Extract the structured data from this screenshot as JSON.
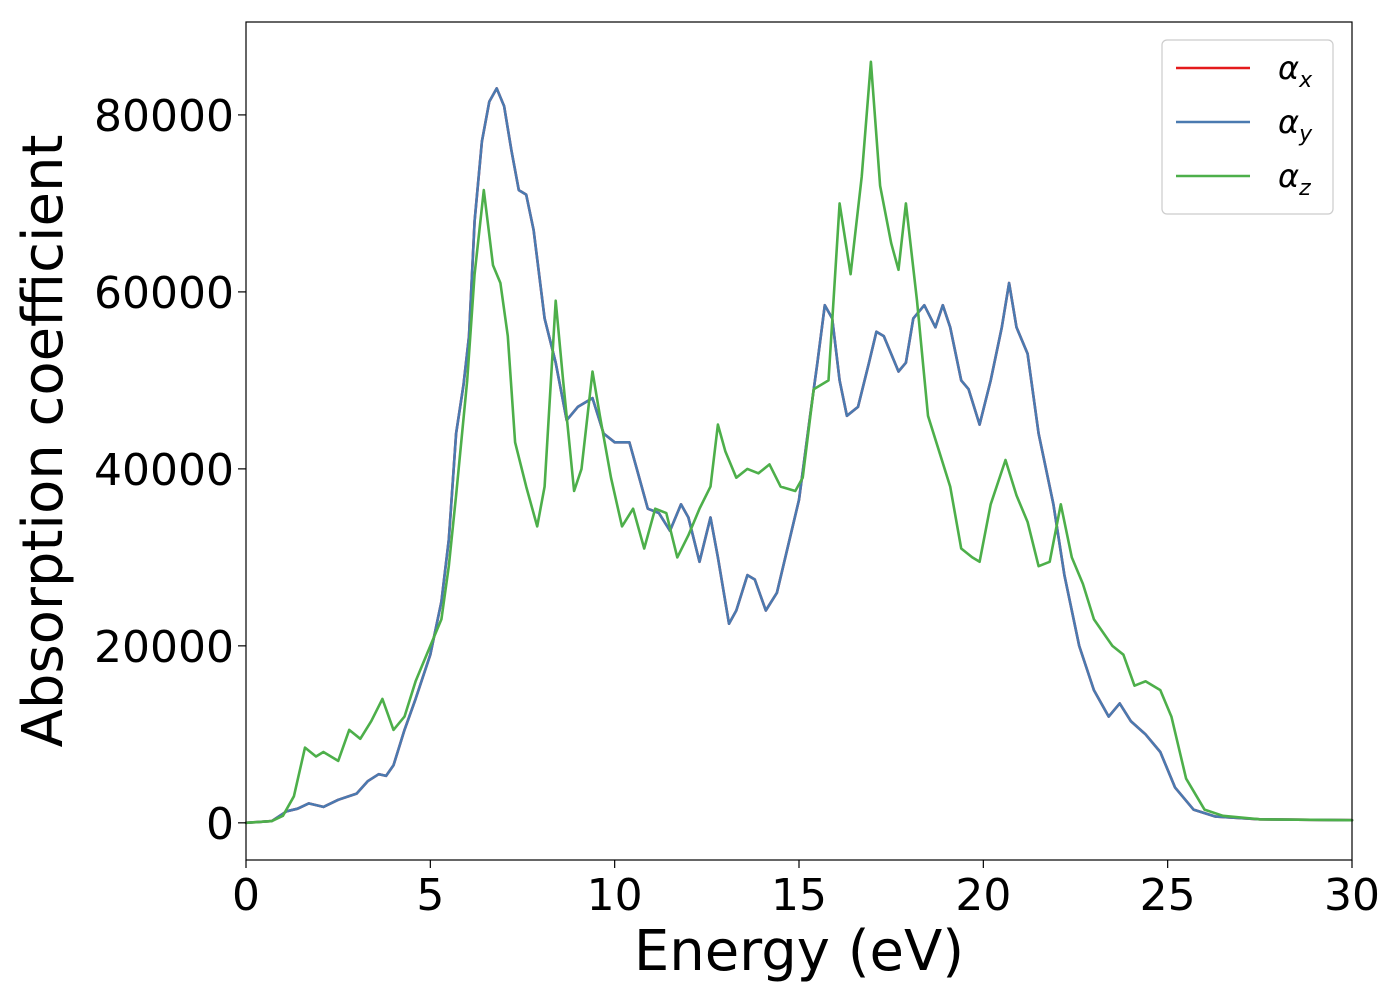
{
  "chart_data": {
    "type": "line",
    "xlabel": "Energy (eV)",
    "ylabel": "Absorption coefficient",
    "xlim": [
      0,
      30
    ],
    "ylim": [
      -4200,
      90500
    ],
    "xticks": [
      "0",
      "5",
      "10",
      "15",
      "20",
      "25",
      "30"
    ],
    "yticks": [
      "0",
      "20000",
      "40000",
      "60000",
      "80000"
    ],
    "grid": false,
    "legend_position": "top-right",
    "series": [
      {
        "name": "α",
        "name_subscript": "x",
        "color": "#e41a1c",
        "points": [
          [
            0,
            0
          ],
          [
            0.7,
            200
          ],
          [
            1.1,
            1300
          ],
          [
            1.4,
            1600
          ],
          [
            1.7,
            2200
          ],
          [
            2.1,
            1800
          ],
          [
            2.5,
            2600
          ],
          [
            3.0,
            3300
          ],
          [
            3.3,
            4700
          ],
          [
            3.6,
            5500
          ],
          [
            3.8,
            5300
          ],
          [
            4.0,
            6500
          ],
          [
            4.3,
            10500
          ],
          [
            4.6,
            14000
          ],
          [
            5.0,
            19000
          ],
          [
            5.3,
            25000
          ],
          [
            5.5,
            32000
          ],
          [
            5.7,
            44000
          ],
          [
            5.9,
            49500
          ],
          [
            6.05,
            55000
          ],
          [
            6.2,
            68000
          ],
          [
            6.4,
            77000
          ],
          [
            6.6,
            81500
          ],
          [
            6.8,
            83000
          ],
          [
            7.0,
            81000
          ],
          [
            7.2,
            76000
          ],
          [
            7.4,
            71500
          ],
          [
            7.6,
            71000
          ],
          [
            7.8,
            67000
          ],
          [
            8.1,
            57000
          ],
          [
            8.4,
            52000
          ],
          [
            8.7,
            45500
          ],
          [
            9.0,
            47000
          ],
          [
            9.4,
            48000
          ],
          [
            9.7,
            44000
          ],
          [
            10.0,
            43000
          ],
          [
            10.4,
            43000
          ],
          [
            10.6,
            40000
          ],
          [
            10.9,
            35500
          ],
          [
            11.2,
            35000
          ],
          [
            11.5,
            33000
          ],
          [
            11.8,
            36000
          ],
          [
            12.0,
            34500
          ],
          [
            12.3,
            29500
          ],
          [
            12.6,
            34500
          ],
          [
            12.8,
            30000
          ],
          [
            13.1,
            22500
          ],
          [
            13.3,
            24000
          ],
          [
            13.6,
            28000
          ],
          [
            13.8,
            27500
          ],
          [
            14.1,
            24000
          ],
          [
            14.4,
            26000
          ],
          [
            15.0,
            36500
          ],
          [
            15.3,
            46000
          ],
          [
            15.5,
            52000
          ],
          [
            15.7,
            58500
          ],
          [
            15.9,
            57000
          ],
          [
            16.1,
            50000
          ],
          [
            16.3,
            46000
          ],
          [
            16.6,
            47000
          ],
          [
            16.9,
            52000
          ],
          [
            17.1,
            55500
          ],
          [
            17.3,
            55000
          ],
          [
            17.7,
            51000
          ],
          [
            17.9,
            52000
          ],
          [
            18.1,
            57000
          ],
          [
            18.4,
            58500
          ],
          [
            18.7,
            56000
          ],
          [
            18.9,
            58500
          ],
          [
            19.1,
            56000
          ],
          [
            19.4,
            50000
          ],
          [
            19.6,
            49000
          ],
          [
            19.9,
            45000
          ],
          [
            20.2,
            50000
          ],
          [
            20.5,
            56000
          ],
          [
            20.7,
            61000
          ],
          [
            20.9,
            56000
          ],
          [
            21.2,
            53000
          ],
          [
            21.5,
            44000
          ],
          [
            21.9,
            36000
          ],
          [
            22.2,
            28000
          ],
          [
            22.6,
            20000
          ],
          [
            23.0,
            15000
          ],
          [
            23.4,
            12000
          ],
          [
            23.7,
            13500
          ],
          [
            24.0,
            11500
          ],
          [
            24.4,
            10000
          ],
          [
            24.8,
            8000
          ],
          [
            25.2,
            4000
          ],
          [
            25.7,
            1500
          ],
          [
            26.3,
            700
          ],
          [
            27.5,
            400
          ],
          [
            30,
            300
          ]
        ]
      },
      {
        "name": "α",
        "name_subscript": "y",
        "color": "#4a7ab0",
        "points": [
          [
            0,
            0
          ],
          [
            0.7,
            200
          ],
          [
            1.1,
            1300
          ],
          [
            1.4,
            1600
          ],
          [
            1.7,
            2200
          ],
          [
            2.1,
            1800
          ],
          [
            2.5,
            2600
          ],
          [
            3.0,
            3300
          ],
          [
            3.3,
            4700
          ],
          [
            3.6,
            5500
          ],
          [
            3.8,
            5300
          ],
          [
            4.0,
            6500
          ],
          [
            4.3,
            10500
          ],
          [
            4.6,
            14000
          ],
          [
            5.0,
            19000
          ],
          [
            5.3,
            25000
          ],
          [
            5.5,
            32000
          ],
          [
            5.7,
            44000
          ],
          [
            5.9,
            49500
          ],
          [
            6.05,
            55000
          ],
          [
            6.2,
            68000
          ],
          [
            6.4,
            77000
          ],
          [
            6.6,
            81500
          ],
          [
            6.8,
            83000
          ],
          [
            7.0,
            81000
          ],
          [
            7.2,
            76000
          ],
          [
            7.4,
            71500
          ],
          [
            7.6,
            71000
          ],
          [
            7.8,
            67000
          ],
          [
            8.1,
            57000
          ],
          [
            8.4,
            52000
          ],
          [
            8.7,
            45500
          ],
          [
            9.0,
            47000
          ],
          [
            9.4,
            48000
          ],
          [
            9.7,
            44000
          ],
          [
            10.0,
            43000
          ],
          [
            10.4,
            43000
          ],
          [
            10.6,
            40000
          ],
          [
            10.9,
            35500
          ],
          [
            11.2,
            35000
          ],
          [
            11.5,
            33000
          ],
          [
            11.8,
            36000
          ],
          [
            12.0,
            34500
          ],
          [
            12.3,
            29500
          ],
          [
            12.6,
            34500
          ],
          [
            12.8,
            30000
          ],
          [
            13.1,
            22500
          ],
          [
            13.3,
            24000
          ],
          [
            13.6,
            28000
          ],
          [
            13.8,
            27500
          ],
          [
            14.1,
            24000
          ],
          [
            14.4,
            26000
          ],
          [
            15.0,
            36500
          ],
          [
            15.3,
            46000
          ],
          [
            15.5,
            52000
          ],
          [
            15.7,
            58500
          ],
          [
            15.9,
            57000
          ],
          [
            16.1,
            50000
          ],
          [
            16.3,
            46000
          ],
          [
            16.6,
            47000
          ],
          [
            16.9,
            52000
          ],
          [
            17.1,
            55500
          ],
          [
            17.3,
            55000
          ],
          [
            17.7,
            51000
          ],
          [
            17.9,
            52000
          ],
          [
            18.1,
            57000
          ],
          [
            18.4,
            58500
          ],
          [
            18.7,
            56000
          ],
          [
            18.9,
            58500
          ],
          [
            19.1,
            56000
          ],
          [
            19.4,
            50000
          ],
          [
            19.6,
            49000
          ],
          [
            19.9,
            45000
          ],
          [
            20.2,
            50000
          ],
          [
            20.5,
            56000
          ],
          [
            20.7,
            61000
          ],
          [
            20.9,
            56000
          ],
          [
            21.2,
            53000
          ],
          [
            21.5,
            44000
          ],
          [
            21.9,
            36000
          ],
          [
            22.2,
            28000
          ],
          [
            22.6,
            20000
          ],
          [
            23.0,
            15000
          ],
          [
            23.4,
            12000
          ],
          [
            23.7,
            13500
          ],
          [
            24.0,
            11500
          ],
          [
            24.4,
            10000
          ],
          [
            24.8,
            8000
          ],
          [
            25.2,
            4000
          ],
          [
            25.7,
            1500
          ],
          [
            26.3,
            700
          ],
          [
            27.5,
            400
          ],
          [
            30,
            300
          ]
        ]
      },
      {
        "name": "α",
        "name_subscript": "z",
        "color": "#4daf4a",
        "points": [
          [
            0,
            0
          ],
          [
            0.7,
            200
          ],
          [
            1.0,
            800
          ],
          [
            1.3,
            3000
          ],
          [
            1.6,
            8500
          ],
          [
            1.9,
            7500
          ],
          [
            2.1,
            8000
          ],
          [
            2.5,
            7000
          ],
          [
            2.8,
            10500
          ],
          [
            3.1,
            9500
          ],
          [
            3.4,
            11500
          ],
          [
            3.7,
            14000
          ],
          [
            4.0,
            10500
          ],
          [
            4.3,
            12000
          ],
          [
            4.6,
            16000
          ],
          [
            5.0,
            20000
          ],
          [
            5.3,
            23000
          ],
          [
            5.5,
            29000
          ],
          [
            5.7,
            37000
          ],
          [
            6.0,
            50000
          ],
          [
            6.2,
            62000
          ],
          [
            6.45,
            71500
          ],
          [
            6.7,
            63000
          ],
          [
            6.9,
            61000
          ],
          [
            7.1,
            55000
          ],
          [
            7.3,
            43000
          ],
          [
            7.6,
            38000
          ],
          [
            7.9,
            33500
          ],
          [
            8.1,
            38000
          ],
          [
            8.4,
            59000
          ],
          [
            8.6,
            50000
          ],
          [
            8.9,
            37500
          ],
          [
            9.1,
            40000
          ],
          [
            9.4,
            51000
          ],
          [
            9.6,
            46000
          ],
          [
            9.9,
            39000
          ],
          [
            10.2,
            33500
          ],
          [
            10.5,
            35500
          ],
          [
            10.8,
            31000
          ],
          [
            11.1,
            35500
          ],
          [
            11.4,
            35000
          ],
          [
            11.7,
            30000
          ],
          [
            12.0,
            32500
          ],
          [
            12.3,
            35500
          ],
          [
            12.6,
            38000
          ],
          [
            12.8,
            45000
          ],
          [
            13.0,
            42000
          ],
          [
            13.3,
            39000
          ],
          [
            13.6,
            40000
          ],
          [
            13.9,
            39500
          ],
          [
            14.2,
            40500
          ],
          [
            14.5,
            38000
          ],
          [
            14.9,
            37500
          ],
          [
            15.1,
            39000
          ],
          [
            15.4,
            49000
          ],
          [
            15.8,
            50000
          ],
          [
            16.1,
            70000
          ],
          [
            16.4,
            62000
          ],
          [
            16.7,
            73000
          ],
          [
            16.95,
            86000
          ],
          [
            17.2,
            72000
          ],
          [
            17.5,
            65500
          ],
          [
            17.7,
            62500
          ],
          [
            17.9,
            70000
          ],
          [
            18.2,
            59000
          ],
          [
            18.5,
            46000
          ],
          [
            18.8,
            42000
          ],
          [
            19.1,
            38000
          ],
          [
            19.4,
            31000
          ],
          [
            19.7,
            30000
          ],
          [
            19.9,
            29500
          ],
          [
            20.2,
            36000
          ],
          [
            20.6,
            41000
          ],
          [
            20.9,
            37000
          ],
          [
            21.2,
            34000
          ],
          [
            21.5,
            29000
          ],
          [
            21.8,
            29500
          ],
          [
            22.1,
            36000
          ],
          [
            22.4,
            30000
          ],
          [
            22.7,
            27000
          ],
          [
            23.0,
            23000
          ],
          [
            23.5,
            20000
          ],
          [
            23.8,
            19000
          ],
          [
            24.1,
            15500
          ],
          [
            24.4,
            16000
          ],
          [
            24.8,
            15000
          ],
          [
            25.1,
            12000
          ],
          [
            25.5,
            5000
          ],
          [
            26.0,
            1500
          ],
          [
            26.5,
            800
          ],
          [
            27.5,
            400
          ],
          [
            30,
            300
          ]
        ]
      }
    ]
  }
}
